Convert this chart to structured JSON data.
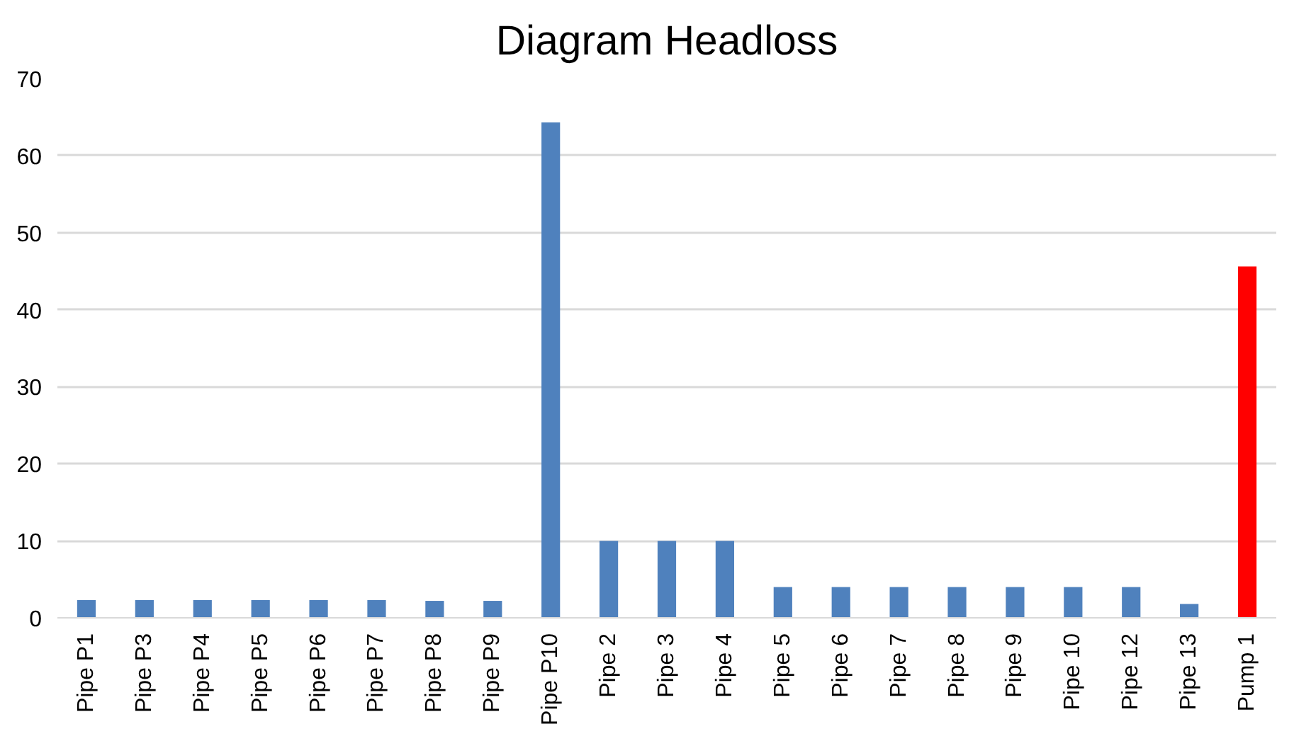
{
  "chart_data": {
    "type": "bar",
    "title": "Diagram Headloss",
    "categories": [
      "Pipe P1",
      "Pipe P3",
      "Pipe P4",
      "Pipe P5",
      "Pipe P6",
      "Pipe P7",
      "Pipe P8",
      "Pipe P9",
      "Pipe P10",
      "Pipe 2",
      "Pipe 3",
      "Pipe 4",
      "Pipe 5",
      "Pipe 6",
      "Pipe 7",
      "Pipe 8",
      "Pipe 9",
      "Pipe 10",
      "Pipe 12",
      "Pipe 13",
      "Pump 1"
    ],
    "values": [
      2.3,
      2.3,
      2.3,
      2.3,
      2.3,
      2.3,
      2.2,
      2.2,
      64.3,
      10,
      10,
      10,
      4,
      4,
      4,
      4,
      4,
      4,
      4,
      1.8,
      45.6
    ],
    "colors": [
      "#4f81bd",
      "#4f81bd",
      "#4f81bd",
      "#4f81bd",
      "#4f81bd",
      "#4f81bd",
      "#4f81bd",
      "#4f81bd",
      "#4f81bd",
      "#4f81bd",
      "#4f81bd",
      "#4f81bd",
      "#4f81bd",
      "#4f81bd",
      "#4f81bd",
      "#4f81bd",
      "#4f81bd",
      "#4f81bd",
      "#4f81bd",
      "#4f81bd",
      "#ff0000"
    ],
    "ylim": [
      0,
      70
    ],
    "yticks": [
      0,
      10,
      20,
      30,
      40,
      50,
      60,
      70
    ],
    "grid": "y"
  }
}
